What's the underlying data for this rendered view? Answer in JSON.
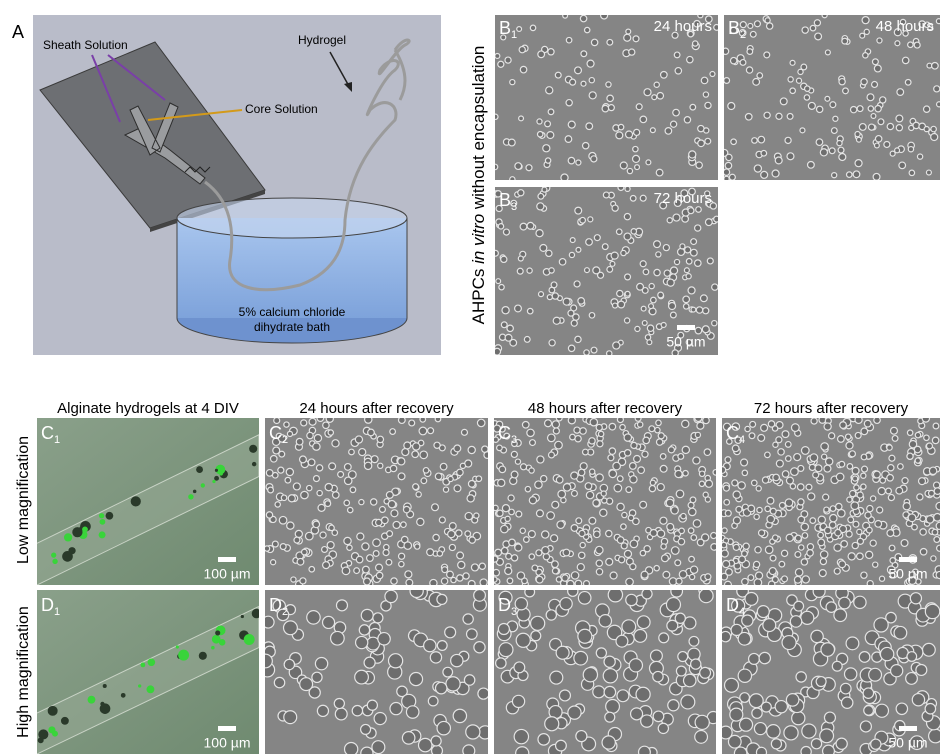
{
  "panel_a": {
    "label": "A",
    "sheath": "Sheath Solution",
    "core": "Core Solution",
    "hydrogel": "Hydrogel",
    "bath": [
      "5% calcium chloride",
      "dihydrate bath"
    ]
  },
  "panel_b": {
    "axis_label": [
      "AHPCs ",
      "in vitro",
      " without encapsulation"
    ],
    "panels": [
      {
        "letter": "B",
        "sub": "1",
        "time": "24 hours"
      },
      {
        "letter": "B",
        "sub": "2",
        "time": "48 hours"
      },
      {
        "letter": "B",
        "sub": "3",
        "time": "72 hours",
        "scale": "50 µm"
      }
    ]
  },
  "panel_cd": {
    "columns": [
      "Alginate hydrogels at 4 DIV",
      "24 hours after recovery",
      "48 hours after recovery",
      "72 hours after recovery"
    ],
    "rows": [
      "Low magnification",
      "High magnification"
    ],
    "panels": [
      [
        {
          "letter": "C",
          "sub": "1",
          "scale": "100 µm"
        },
        {
          "letter": "C",
          "sub": "2"
        },
        {
          "letter": "C",
          "sub": "3"
        },
        {
          "letter": "C",
          "sub": "4",
          "scale": "50 µm"
        }
      ],
      [
        {
          "letter": "D",
          "sub": "1",
          "scale": "100 µm"
        },
        {
          "letter": "D",
          "sub": "2"
        },
        {
          "letter": "D",
          "sub": "3"
        },
        {
          "letter": "D",
          "sub": "4",
          "scale": "50 µm"
        }
      ]
    ]
  }
}
